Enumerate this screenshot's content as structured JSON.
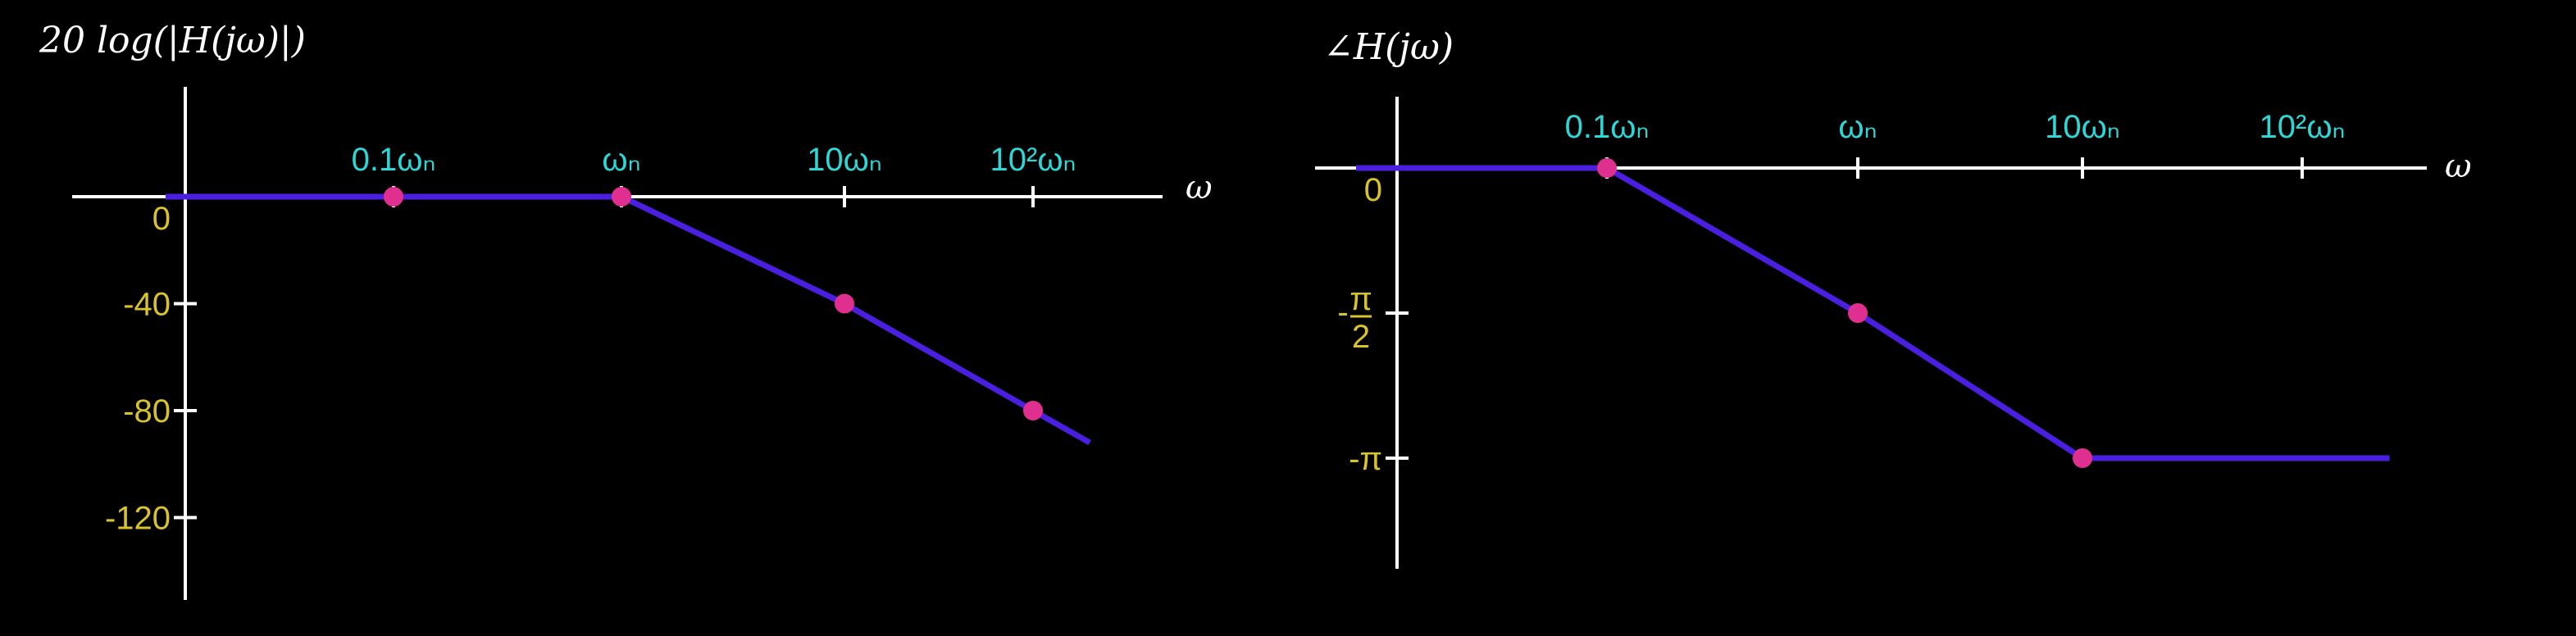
{
  "chart_data": [
    {
      "type": "line",
      "title": "20 log(|H(jω)|)",
      "xlabel": "ω",
      "ylabel": "",
      "x_scale": "log",
      "x_ticks": [
        "0.1ωₙ",
        "ωₙ",
        "10ωₙ",
        "10²ωₙ"
      ],
      "x_tick_values": [
        0.1,
        1,
        10,
        100
      ],
      "y_ticks": [
        "0",
        "-40",
        "-80",
        "-120"
      ],
      "y_tick_values": [
        0,
        -40,
        -80,
        -120
      ],
      "xlim": [
        0.01,
        200
      ],
      "ylim": [
        -140,
        0
      ],
      "series": [
        {
          "points": [
            [
              0.01,
              0
            ],
            [
              0.1,
              0
            ],
            [
              1,
              0
            ],
            [
              10,
              -40
            ],
            [
              100,
              -80
            ],
            [
              200,
              -92
            ]
          ]
        }
      ],
      "markers": [
        [
          0.1,
          0
        ],
        [
          1,
          0
        ],
        [
          10,
          -40
        ],
        [
          100,
          -80
        ]
      ]
    },
    {
      "type": "line",
      "title": "∠H(jω)",
      "xlabel": "ω",
      "ylabel": "",
      "x_scale": "log",
      "x_ticks": [
        "0.1ωₙ",
        "ωₙ",
        "10ωₙ",
        "10²ωₙ"
      ],
      "x_tick_values": [
        0.1,
        1,
        10,
        100
      ],
      "y_ticks": [
        "0",
        "-π/2",
        "-π"
      ],
      "y_tick_values": [
        0,
        -1.5708,
        -3.1416
      ],
      "xlim": [
        0.01,
        300
      ],
      "ylim": [
        -4.2,
        0
      ],
      "series": [
        {
          "points": [
            [
              0.01,
              0
            ],
            [
              0.1,
              0
            ],
            [
              1,
              -1.5708
            ],
            [
              10,
              -3.1416
            ],
            [
              100,
              -3.1416
            ],
            [
              250,
              -3.1416
            ]
          ]
        }
      ],
      "markers": [
        [
          0.1,
          0
        ],
        [
          1,
          -1.5708
        ],
        [
          10,
          -3.1416
        ]
      ]
    }
  ],
  "colors": {
    "line": "#4a1fe0",
    "marker": "#e0308f",
    "axis": "#ffffff",
    "x_tick_text": "#2fd6d6",
    "y_tick_text": "#d8c22e"
  }
}
